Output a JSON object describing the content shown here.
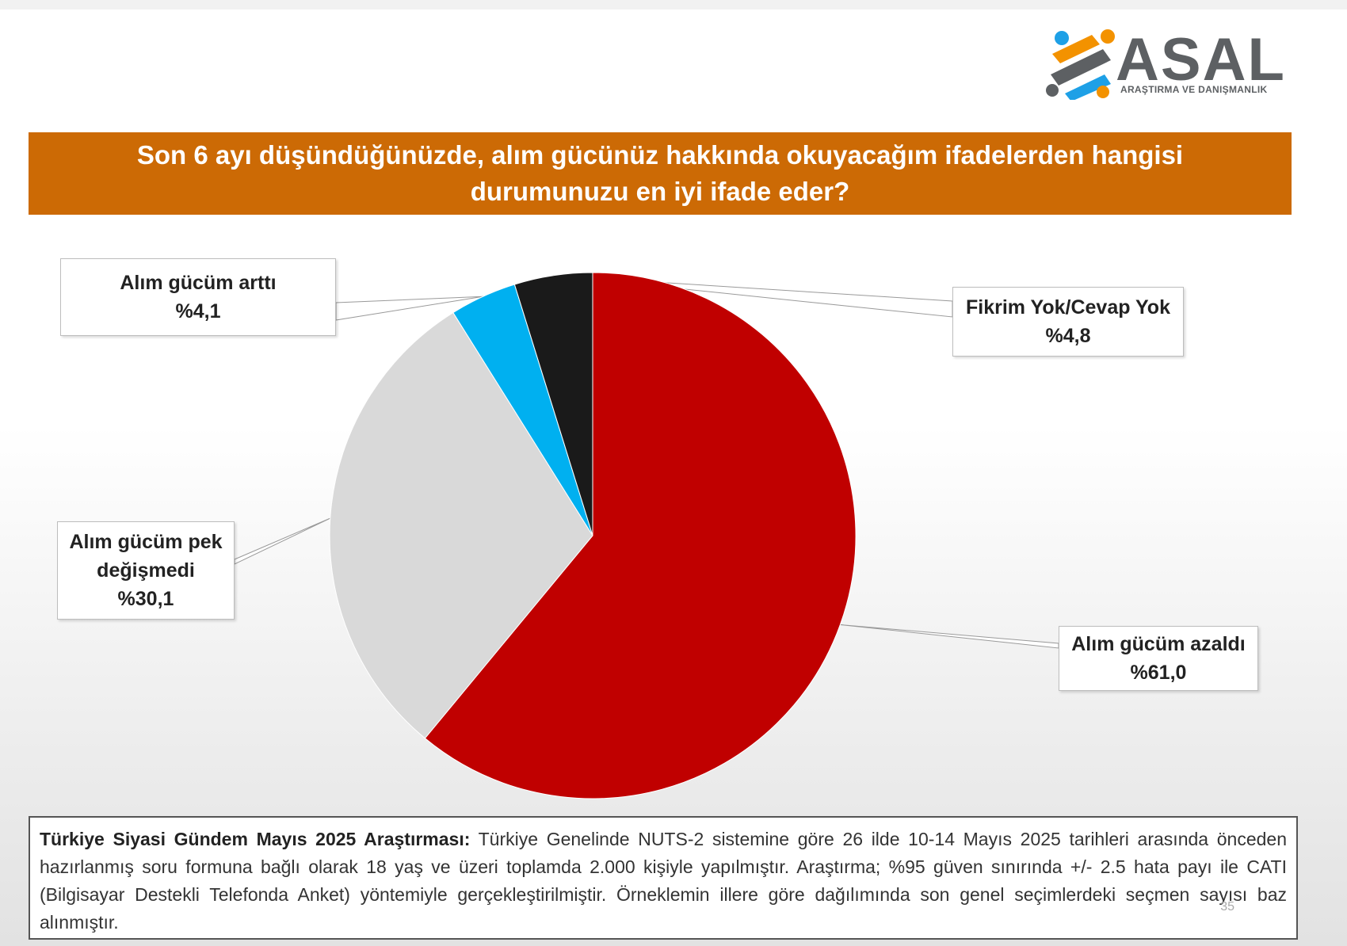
{
  "brand": {
    "name": "ASAL",
    "tagline": "ARAŞTIRMA VE DANIŞMANLIK",
    "colors": {
      "text": "#5d6063",
      "blue": "#1ea0e6",
      "orange": "#f39200"
    }
  },
  "title": "Son 6 ayı düşündüğünüzde, alım gücünüz hakkında okuyacağım ifadelerden hangisi durumunuzu en iyi ifade eder?",
  "chart_data": {
    "type": "pie",
    "title": "Son 6 ayı düşündüğünüzde, alım gücünüz hakkında okuyacağım ifadelerden hangisi durumunuzu en iyi ifade eder?",
    "slices": [
      {
        "label": "Alım gücüm azaldı",
        "value": 61.0,
        "display": "%61,0",
        "color": "#c00000"
      },
      {
        "label": "Alım gücüm pek değişmedi",
        "value": 30.1,
        "display": "%30,1",
        "color": "#d9d9d9"
      },
      {
        "label": "Alım gücüm arttı",
        "value": 4.1,
        "display": "%4,1",
        "color": "#00b0f0"
      },
      {
        "label": "Fikrim Yok/Cevap Yok",
        "value": 4.8,
        "display": "%4,8",
        "color": "#1a1a1a"
      }
    ],
    "start": "12 o'clock",
    "direction": "clockwise"
  },
  "labels": {
    "azaldi": {
      "name": "Alım gücüm azaldı",
      "pct": "%61,0"
    },
    "degismedi": {
      "line1": "Alım gücüm pek",
      "line2": "değişmedi",
      "pct": "%30,1"
    },
    "artti": {
      "name": "Alım gücüm arttı",
      "pct": "%4,1"
    },
    "fikrim": {
      "name": "Fikrim Yok/Cevap Yok",
      "pct": "%4,8"
    }
  },
  "footer": {
    "heading": "Türkiye Siyasi Gündem Mayıs 2025 Araştırması:",
    "text": " Türkiye Genelinde NUTS-2 sistemine göre 26 ilde 10-14 Mayıs 2025 tarihleri arasında önceden hazırlanmış soru formuna bağlı olarak 18 yaş ve üzeri toplamda 2.000 kişiyle yapılmıştır. Araştırma; %95 güven sınırında +/- 2.5 hata payı ile CATI (Bilgisayar Destekli Telefonda Anket) yöntemiyle gerçekleştirilmiştir. Örneklemin illere göre dağılımında son genel seçimlerdeki seçmen sayısı baz alınmıştır.",
    "page_number": "35"
  }
}
